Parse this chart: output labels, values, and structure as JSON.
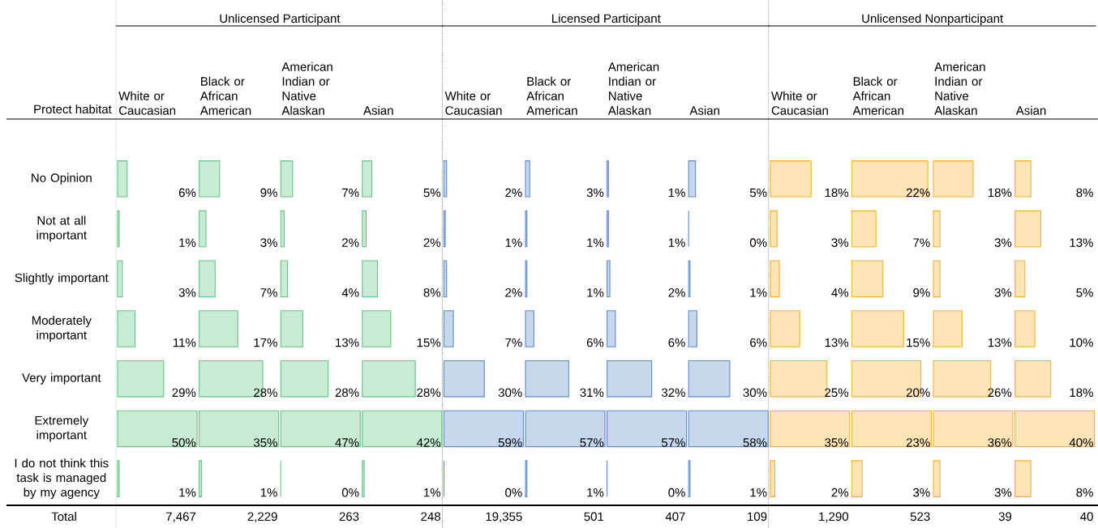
{
  "chart_data": [
    {
      "type": "bar",
      "orientation": "horizontal",
      "title": "White or Caucasian",
      "categories": [
        "No Opinion",
        "Not at all important",
        "Slightly important",
        "Moderately important",
        "Very important",
        "Extremely important",
        "I do not think this task is managed by my agency"
      ],
      "values": [
        6,
        1,
        3,
        11,
        29,
        50,
        1
      ],
      "value_labels": [
        "6%",
        "1%",
        "3%",
        "11%",
        "29%",
        "50%",
        "1%"
      ],
      "color": "#63c685",
      "tick_labels": "y",
      "annotations": [
        "Unlicensed Participant",
        "Protect habitat",
        "Total",
        "7,467"
      ]
    },
    {
      "type": "bar",
      "orientation": "horizontal",
      "title": "Black or African American",
      "categories": [
        null,
        null,
        null,
        null,
        null,
        null,
        null
      ],
      "values": [
        9,
        3,
        7,
        17,
        28,
        35,
        1
      ],
      "value_labels": [
        "9%",
        "3%",
        "7%",
        "17%",
        "28%",
        "35%",
        "1%"
      ],
      "color": "#63c685",
      "tick_labels": false,
      "annotations": [
        "2,229"
      ]
    },
    {
      "type": "bar",
      "orientation": "horizontal",
      "title": "American Indian or Native Alaskan",
      "categories": [
        null,
        null,
        null,
        null,
        null,
        null,
        null
      ],
      "values": [
        7,
        2,
        4,
        13,
        28,
        47,
        0
      ],
      "value_labels": [
        "7%",
        "2%",
        "4%",
        "13%",
        "28%",
        "47%",
        "0%"
      ],
      "color": "#63c685",
      "tick_labels": false,
      "annotations": [
        "263"
      ]
    },
    {
      "type": "bar",
      "orientation": "horizontal",
      "title": "Asian",
      "categories": [
        null,
        null,
        null,
        null,
        null,
        null,
        null
      ],
      "values": [
        5,
        2,
        8,
        15,
        28,
        42,
        1
      ],
      "value_labels": [
        "5%",
        "2%",
        "8%",
        "15%",
        "28%",
        "42%",
        "1%"
      ],
      "color": "#63c685",
      "tick_labels": false,
      "annotations": [
        "248"
      ]
    },
    {
      "type": "bar",
      "orientation": "horizontal",
      "title": "White or Caucasian",
      "categories": [
        null,
        null,
        null,
        null,
        null,
        null,
        null
      ],
      "values": [
        2,
        1,
        2,
        7,
        30,
        59,
        0
      ],
      "value_labels": [
        "2%",
        "1%",
        "2%",
        "7%",
        "30%",
        "59%",
        "0%"
      ],
      "color": "#5b8ccf",
      "tick_labels": false,
      "annotations": [
        "Licensed Participant",
        "19,355"
      ]
    },
    {
      "type": "bar",
      "orientation": "horizontal",
      "title": "Black or African American",
      "categories": [
        null,
        null,
        null,
        null,
        null,
        null,
        null
      ],
      "values": [
        3,
        1,
        1,
        6,
        31,
        57,
        1
      ],
      "value_labels": [
        "3%",
        "1%",
        "1%",
        "6%",
        "31%",
        "57%",
        "1%"
      ],
      "color": "#5b8ccf",
      "tick_labels": false,
      "annotations": [
        "501"
      ]
    },
    {
      "type": "bar",
      "orientation": "horizontal",
      "title": "American Indian or Native Alaskan",
      "categories": [
        null,
        null,
        null,
        null,
        null,
        null,
        null
      ],
      "values": [
        1,
        1,
        2,
        6,
        32,
        57,
        0
      ],
      "value_labels": [
        "1%",
        "1%",
        "2%",
        "6%",
        "32%",
        "57%",
        "0%"
      ],
      "color": "#5b8ccf",
      "tick_labels": false,
      "annotations": [
        "407"
      ]
    },
    {
      "type": "bar",
      "orientation": "horizontal",
      "title": "Asian",
      "categories": [
        null,
        null,
        null,
        null,
        null,
        null,
        null
      ],
      "values": [
        5,
        0,
        1,
        6,
        30,
        58,
        1
      ],
      "value_labels": [
        "5%",
        "0%",
        "1%",
        "6%",
        "30%",
        "58%",
        "1%"
      ],
      "color": "#5b8ccf",
      "tick_labels": false,
      "annotations": [
        "109"
      ]
    },
    {
      "type": "bar",
      "orientation": "horizontal",
      "title": "White or Caucasian",
      "categories": [
        null,
        null,
        null,
        null,
        null,
        null,
        null
      ],
      "values": [
        18,
        3,
        4,
        13,
        25,
        35,
        2
      ],
      "value_labels": [
        "18%",
        "3%",
        "4%",
        "13%",
        "25%",
        "35%",
        "2%"
      ],
      "color": "#fbb12e",
      "tick_labels": false,
      "annotations": [
        "Unlicensed Nonparticipant",
        "1,290"
      ]
    },
    {
      "type": "bar",
      "orientation": "horizontal",
      "title": "Black or African American",
      "categories": [
        null,
        null,
        null,
        null,
        null,
        null,
        null
      ],
      "values": [
        22,
        7,
        9,
        15,
        20,
        23,
        3
      ],
      "value_labels": [
        "22%",
        "7%",
        "9%",
        "15%",
        "20%",
        "23%",
        "3%"
      ],
      "color": "#fbb12e",
      "tick_labels": false,
      "annotations": [
        "523"
      ]
    },
    {
      "type": "bar",
      "orientation": "horizontal",
      "title": "American Indian or Native Alaskan",
      "categories": [
        null,
        null,
        null,
        null,
        null,
        null,
        null
      ],
      "values": [
        18,
        3,
        3,
        13,
        26,
        36,
        3
      ],
      "value_labels": [
        "18%",
        "3%",
        "3%",
        "13%",
        "26%",
        "36%",
        "3%"
      ],
      "color": "#fbb12e",
      "tick_labels": false,
      "annotations": [
        "39"
      ]
    },
    {
      "type": "bar",
      "orientation": "horizontal",
      "title": "Asian",
      "categories": [
        null,
        null,
        null,
        null,
        null,
        null,
        null
      ],
      "values": [
        8,
        13,
        5,
        10,
        18,
        40,
        8
      ],
      "value_labels": [
        "8%",
        "13%",
        "5%",
        "10%",
        "18%",
        "40%",
        "8%"
      ],
      "color": "#fbb12e",
      "tick_labels": false,
      "annotations": [
        "40"
      ]
    }
  ]
}
